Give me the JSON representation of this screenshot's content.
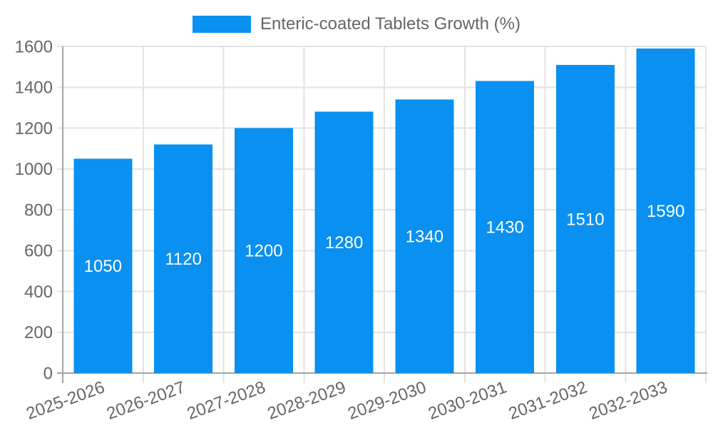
{
  "chart_data": {
    "type": "bar",
    "categories": [
      "2025-2026",
      "2026-2027",
      "2027-2028",
      "2028-2029",
      "2029-2030",
      "2030-2031",
      "2031-2032",
      "2032-2033"
    ],
    "series": [
      {
        "name": "Enteric-coated Tablets Growth (%)",
        "values": [
          1050,
          1120,
          1200,
          1280,
          1340,
          1430,
          1510,
          1590
        ]
      }
    ],
    "title": "",
    "xlabel": "",
    "ylabel": "",
    "ylim": [
      0,
      1600
    ],
    "ytick_step": 200,
    "yticks": [
      0,
      200,
      400,
      600,
      800,
      1000,
      1200,
      1400,
      1600
    ],
    "grid": true,
    "legend_position": "top",
    "x_label_rotation_deg": -20,
    "bar_color": "#0a90f0",
    "value_label_color": "#ffffff",
    "grid_color": "#e3e3e3",
    "axis_color": "#a3a3a3",
    "tick_label_color": "#666666",
    "legend_text_color": "#666666",
    "background_color": "#ffffff"
  }
}
